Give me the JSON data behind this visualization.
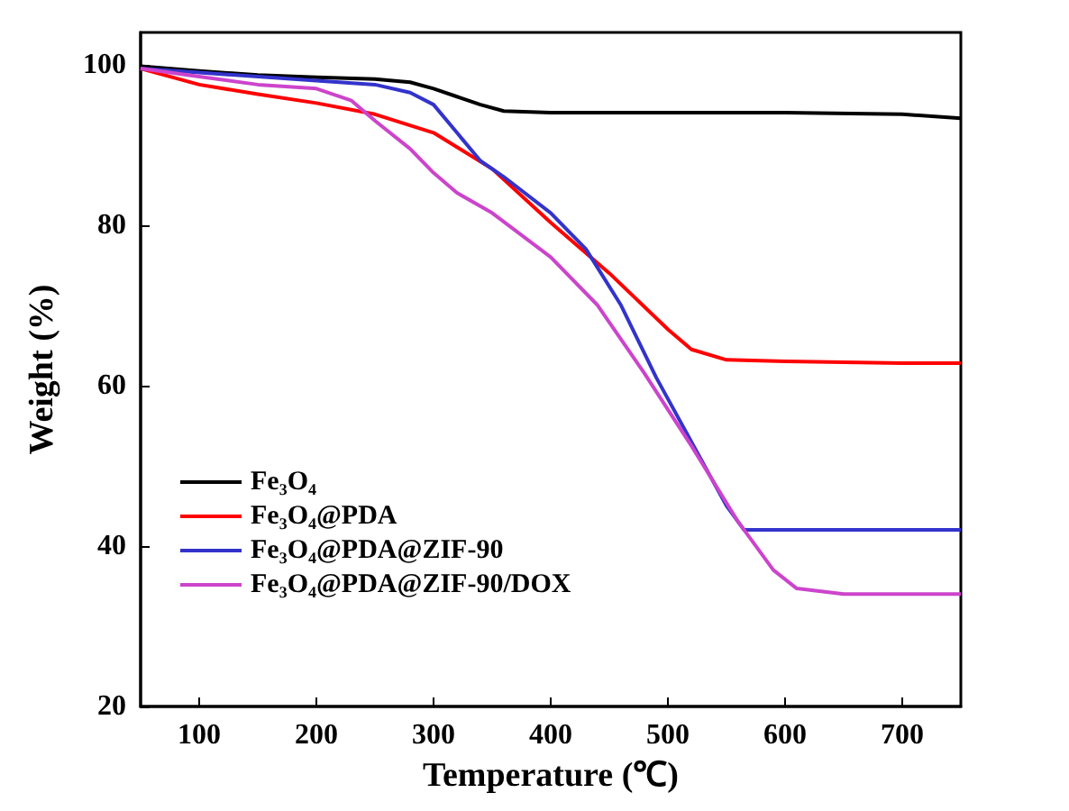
{
  "chart_data": {
    "type": "line",
    "xlabel": "Temperature (℃)",
    "ylabel": "Weight (%)",
    "xlim": [
      50,
      750
    ],
    "xticks": [
      100,
      200,
      300,
      400,
      500,
      600,
      700
    ],
    "ylim": [
      20,
      104
    ],
    "yticks": [
      20,
      40,
      60,
      80,
      100
    ],
    "grid": false,
    "legend": "bottom left",
    "series": [
      {
        "name": "Fe₃O₄",
        "color": "#000000",
        "x": [
          50,
          100,
          150,
          200,
          250,
          280,
          300,
          320,
          340,
          360,
          400,
          500,
          600,
          700,
          750
        ],
        "values": [
          99.8,
          99.2,
          98.7,
          98.4,
          98.2,
          97.8,
          97,
          96,
          95,
          94.2,
          94,
          94,
          94,
          93.8,
          93.3
        ]
      },
      {
        "name": "Fe₃O₄@PDA",
        "color": "#ff0000",
        "x": [
          50,
          100,
          150,
          200,
          250,
          300,
          350,
          400,
          450,
          500,
          520,
          550,
          600,
          700,
          750
        ],
        "values": [
          99.5,
          97.5,
          96.3,
          95.2,
          93.8,
          91.5,
          87,
          80.3,
          74,
          67,
          64.5,
          63.2,
          63,
          62.8,
          62.8
        ]
      },
      {
        "name": "Fe₃O₄@PDA@ZIF-90",
        "color": "#3333cc",
        "x": [
          50,
          100,
          200,
          250,
          280,
          300,
          320,
          340,
          360,
          400,
          430,
          460,
          490,
          520,
          550,
          565,
          600,
          750
        ],
        "values": [
          99.5,
          99,
          98,
          97.5,
          96.5,
          95,
          91.5,
          88,
          86,
          81.5,
          77,
          70,
          61,
          53,
          45,
          42,
          42,
          42
        ]
      },
      {
        "name": "Fe₃O₄@PDA@ZIF-90/DOX",
        "color": "#cc44cc",
        "x": [
          50,
          100,
          150,
          200,
          230,
          250,
          280,
          300,
          320,
          350,
          400,
          440,
          480,
          520,
          560,
          590,
          610,
          650,
          750
        ],
        "values": [
          99.5,
          98.5,
          97.5,
          97,
          95.5,
          93,
          89.5,
          86.5,
          84,
          81.5,
          76,
          70,
          61.5,
          52.5,
          43,
          37,
          34.7,
          34,
          34
        ]
      }
    ]
  }
}
